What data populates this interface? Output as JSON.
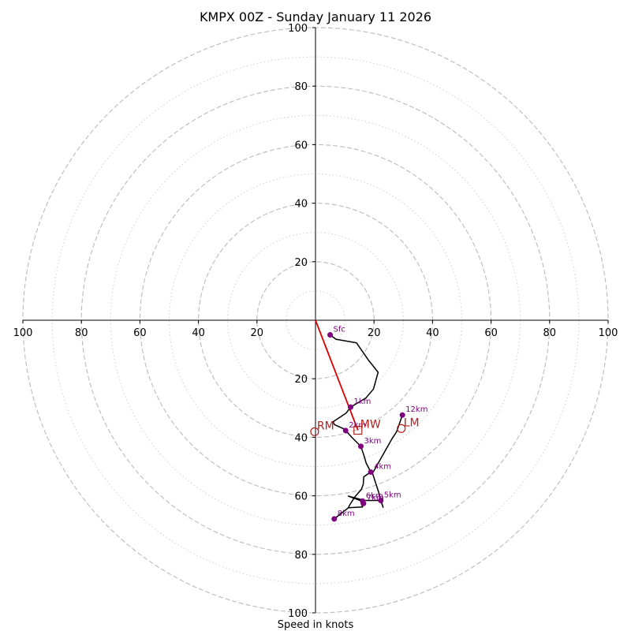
{
  "chart_data": {
    "type": "hodograph",
    "title": "KMPX 00Z - Sunday January 11 2026",
    "xlabel": "Speed in knots",
    "range": [
      -100,
      100
    ],
    "ring_major": [
      20,
      40,
      60,
      80,
      100
    ],
    "ring_minor": [
      10,
      30,
      50,
      70,
      90
    ],
    "x_ticks": [
      {
        "v": -100,
        "label": "100"
      },
      {
        "v": -80,
        "label": "80"
      },
      {
        "v": -60,
        "label": "60"
      },
      {
        "v": -40,
        "label": "40"
      },
      {
        "v": -20,
        "label": "20"
      },
      {
        "v": 20,
        "label": "20"
      },
      {
        "v": 40,
        "label": "40"
      },
      {
        "v": 60,
        "label": "60"
      },
      {
        "v": 80,
        "label": "80"
      },
      {
        "v": 100,
        "label": "100"
      }
    ],
    "y_ticks_top": [
      {
        "v": 20,
        "label": "20"
      },
      {
        "v": 40,
        "label": "40"
      },
      {
        "v": 60,
        "label": "60"
      },
      {
        "v": 80,
        "label": "80"
      },
      {
        "v": 100,
        "label": "100"
      }
    ],
    "y_ticks_bottom": [
      {
        "v": -20,
        "label": "20"
      },
      {
        "v": -40,
        "label": "40"
      },
      {
        "v": -60,
        "label": "60"
      },
      {
        "v": -80,
        "label": "80"
      },
      {
        "v": -100,
        "label": "100"
      }
    ],
    "trace": [
      [
        5,
        -5
      ],
      [
        7,
        -6.5
      ],
      [
        14,
        -7.7
      ],
      [
        18,
        -13.5
      ],
      [
        21.4,
        -17.8
      ],
      [
        19.8,
        -23.5
      ],
      [
        17.2,
        -26.6
      ],
      [
        12,
        -29.7
      ],
      [
        10.5,
        -31.7
      ],
      [
        6,
        -34.7
      ],
      [
        6.5,
        -35.7
      ],
      [
        9.6,
        -37.1
      ],
      [
        10.3,
        -37.7
      ],
      [
        12.6,
        -40.2
      ],
      [
        15.5,
        -43.1
      ],
      [
        16.5,
        -46
      ],
      [
        17.3,
        -48.8
      ],
      [
        18.9,
        -51.9
      ],
      [
        16.5,
        -53.5
      ],
      [
        16.3,
        -56.1
      ],
      [
        15.7,
        -57.8
      ],
      [
        13.5,
        -60.3
      ],
      [
        11.7,
        -63.1
      ],
      [
        11.2,
        -64.1
      ],
      [
        6.4,
        -67.9
      ],
      [
        11.2,
        -64.1
      ],
      [
        16.1,
        -63.8
      ],
      [
        15.6,
        -62.6
      ],
      [
        16.4,
        -62.1
      ],
      [
        15.8,
        -61.8
      ],
      [
        11.2,
        -60.1
      ],
      [
        16.8,
        -61.6
      ],
      [
        22.3,
        -61.6
      ],
      [
        23.1,
        -63.9
      ],
      [
        21.6,
        -58.8
      ],
      [
        19.5,
        -52.3
      ],
      [
        22.7,
        -46.6
      ],
      [
        26.2,
        -40.4
      ],
      [
        27.7,
        -38.1
      ],
      [
        29.7,
        -32.4
      ]
    ],
    "height_points": [
      {
        "label": "Sfc",
        "u": 5,
        "v": -5
      },
      {
        "label": "1km",
        "u": 12,
        "v": -29.7
      },
      {
        "label": "2km",
        "u": 10.3,
        "v": -37.7
      },
      {
        "label": "3km",
        "u": 15.5,
        "v": -43.1
      },
      {
        "label": "4km",
        "u": 18.9,
        "v": -51.9
      },
      {
        "label": "5km",
        "u": 22.3,
        "v": -61.6
      },
      {
        "label": "6km",
        "u": 16.1,
        "v": -61.8
      },
      {
        "label": "7km",
        "u": 16.4,
        "v": -62.6
      },
      {
        "label": "8km",
        "u": 6.4,
        "v": -67.9
      },
      {
        "label": "12km",
        "u": 29.7,
        "v": -32.4
      }
    ],
    "storm_motion": {
      "rm": {
        "label": "RM",
        "u": -0.3,
        "v": -38.1
      },
      "lm": {
        "label": "LM",
        "u": 29.3,
        "v": -37
      },
      "mw": {
        "label": "MW",
        "u": 14.5,
        "v": -37.6
      }
    },
    "colors": {
      "trace": "#000000",
      "points": "#800080",
      "motion": "#b22222",
      "shear": "#dd0000",
      "rings": "#bbbbbb"
    }
  }
}
